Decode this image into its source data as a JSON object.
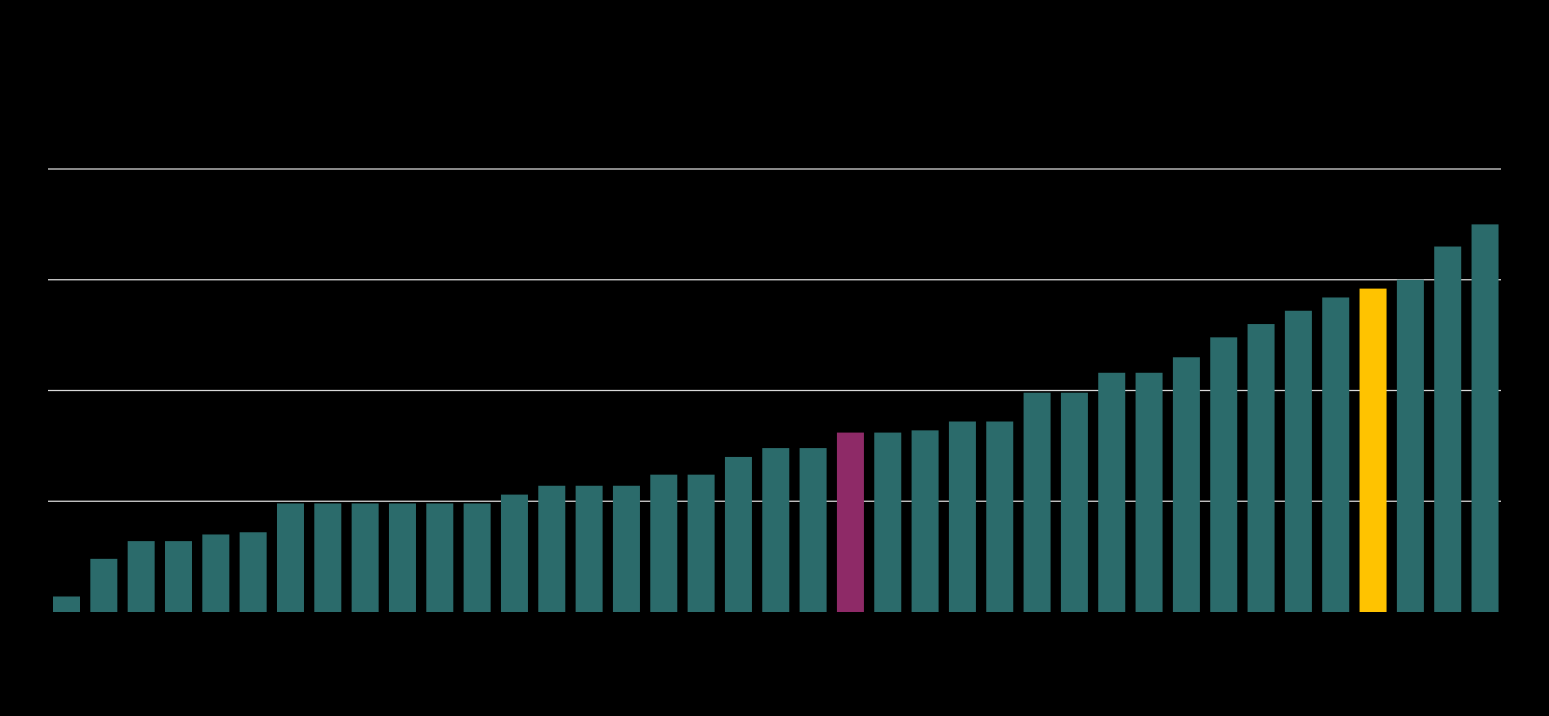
{
  "chart_data": {
    "type": "bar",
    "title": "",
    "xlabel": "",
    "ylabel": "",
    "grid": true,
    "ylim": [
      0,
      20
    ],
    "gridlines": [
      5,
      10,
      15,
      20
    ],
    "values": [
      0.7,
      2.4,
      3.2,
      3.2,
      3.5,
      3.6,
      4.9,
      4.9,
      4.9,
      4.9,
      4.9,
      4.9,
      5.3,
      5.7,
      5.7,
      5.7,
      6.2,
      6.2,
      7.0,
      7.4,
      7.4,
      8.1,
      8.1,
      8.2,
      8.6,
      8.6,
      9.9,
      9.9,
      10.8,
      10.8,
      11.5,
      12.4,
      13.0,
      13.6,
      14.2,
      14.6,
      15.0,
      16.5,
      17.5
    ],
    "highlights": {
      "21": "#8e2a67",
      "35": "#ffc300"
    },
    "colors": {
      "bar": "#2b6b6b",
      "grid": "#ffffff",
      "background": "#000000"
    }
  }
}
